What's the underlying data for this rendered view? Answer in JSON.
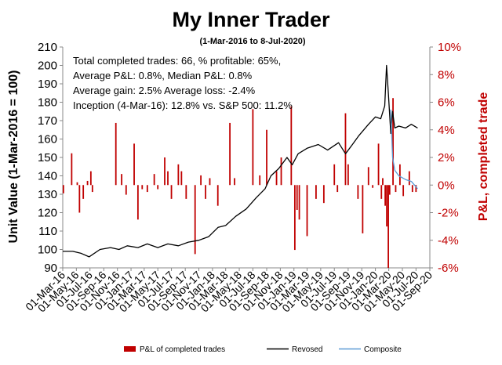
{
  "chart_data": {
    "type": "bar+line",
    "title": "My Inner Trader",
    "subtitle": "(1-Mar-2016 to 8-Jul-2020)",
    "ylabel_left": "Unit Value (1-Mar-2016 = 100)",
    "ylabel_right": "P&L, completed trade",
    "ylim_left": [
      90,
      210
    ],
    "yticks_left": [
      "90",
      "100",
      "110",
      "120",
      "130",
      "140",
      "150",
      "160",
      "170",
      "180",
      "190",
      "200",
      "210"
    ],
    "ylim_right": [
      -6,
      10
    ],
    "yticks_right": [
      "-6%",
      "-4%",
      "-2%",
      "0%",
      "2%",
      "4%",
      "6%",
      "8%",
      "10%"
    ],
    "xlim": [
      "2016-03-01",
      "2020-09-01"
    ],
    "xticks": [
      "01-Mar-16",
      "01-May-16",
      "01-Jul-16",
      "01-Sep-16",
      "01-Nov-16",
      "01-Jan-17",
      "01-Mar-17",
      "01-May-17",
      "01-Jul-17",
      "01-Sep-17",
      "01-Nov-17",
      "01-Jan-18",
      "01-Mar-18",
      "01-May-18",
      "01-Jul-18",
      "01-Sep-18",
      "01-Nov-18",
      "01-Jan-19",
      "01-Mar-19",
      "01-May-19",
      "01-Jul-19",
      "01-Sep-19",
      "01-Nov-19",
      "01-Jan-20",
      "01-Mar-20",
      "01-May-20",
      "01-Jul-20",
      "01-Sep-20"
    ],
    "annotations": [
      "Total completed trades: 66, % profitable: 65%,",
      "Average P&L: 0.8%, Median P&L: 0.8%",
      "Average gain: 2.5% Average loss: -2.4%",
      "Inception (4-Mar-16): 12.8% vs. S&P 500: 11.2%"
    ],
    "legend": [
      "P&L of completed trades",
      "Revosed",
      "Composite"
    ],
    "legend_position": "bottom",
    "colors": {
      "bars": "#c00000",
      "revosed": "#000000",
      "composite": "#5b9bd5"
    },
    "series": [
      {
        "name": "Revosed",
        "axis": "left",
        "points": [
          [
            "2016-03-01",
            99
          ],
          [
            "2016-04-15",
            99
          ],
          [
            "2016-05-20",
            98
          ],
          [
            "2016-06-27",
            96
          ],
          [
            "2016-08-15",
            100
          ],
          [
            "2016-10-01",
            101
          ],
          [
            "2016-11-08",
            100
          ],
          [
            "2016-12-15",
            102
          ],
          [
            "2017-02-01",
            101
          ],
          [
            "2017-03-15",
            103
          ],
          [
            "2017-05-01",
            101
          ],
          [
            "2017-06-15",
            103
          ],
          [
            "2017-08-01",
            102
          ],
          [
            "2017-09-15",
            104
          ],
          [
            "2017-11-01",
            105
          ],
          [
            "2017-12-15",
            107
          ],
          [
            "2018-01-26",
            112
          ],
          [
            "2018-03-01",
            113
          ],
          [
            "2018-04-15",
            118
          ],
          [
            "2018-06-01",
            122
          ],
          [
            "2018-07-15",
            128
          ],
          [
            "2018-08-25",
            133
          ],
          [
            "2018-09-20",
            140
          ],
          [
            "2018-10-25",
            144
          ],
          [
            "2018-12-01",
            150
          ],
          [
            "2018-12-24",
            146
          ],
          [
            "2019-01-20",
            152
          ],
          [
            "2019-03-01",
            155
          ],
          [
            "2019-04-20",
            157
          ],
          [
            "2019-06-01",
            154
          ],
          [
            "2019-07-20",
            158
          ],
          [
            "2019-08-20",
            152
          ],
          [
            "2019-09-20",
            157
          ],
          [
            "2019-10-20",
            162
          ],
          [
            "2019-12-01",
            168
          ],
          [
            "2020-01-01",
            172
          ],
          [
            "2020-01-25",
            171
          ],
          [
            "2020-02-12",
            178
          ],
          [
            "2020-02-20",
            200
          ],
          [
            "2020-02-28",
            185
          ],
          [
            "2020-03-10",
            163
          ],
          [
            "2020-03-18",
            175
          ],
          [
            "2020-03-28",
            166
          ],
          [
            "2020-04-15",
            167
          ],
          [
            "2020-05-15",
            166
          ],
          [
            "2020-06-10",
            168
          ],
          [
            "2020-07-08",
            166
          ]
        ]
      },
      {
        "name": "Composite",
        "axis": "left",
        "points": [
          [
            "2020-03-10",
            176
          ],
          [
            "2020-03-18",
            150
          ],
          [
            "2020-03-28",
            143
          ],
          [
            "2020-04-15",
            140
          ],
          [
            "2020-05-15",
            138
          ],
          [
            "2020-06-10",
            137
          ],
          [
            "2020-07-08",
            133
          ]
        ]
      },
      {
        "name": "P&L of completed trades",
        "axis": "right",
        "type": "bar",
        "points": [
          [
            "2016-03-04",
            -0.6
          ],
          [
            "2016-04-10",
            2.3
          ],
          [
            "2016-05-05",
            0.2
          ],
          [
            "2016-05-15",
            -2.0
          ],
          [
            "2016-06-01",
            -1.0
          ],
          [
            "2016-06-20",
            0.3
          ],
          [
            "2016-07-05",
            1.0
          ],
          [
            "2016-07-12",
            -0.5
          ],
          [
            "2016-10-25",
            4.5
          ],
          [
            "2016-11-20",
            0.8
          ],
          [
            "2016-12-10",
            -0.7
          ],
          [
            "2017-01-15",
            3.0
          ],
          [
            "2017-02-01",
            -2.5
          ],
          [
            "2017-02-20",
            -0.3
          ],
          [
            "2017-03-15",
            -0.5
          ],
          [
            "2017-04-15",
            0.8
          ],
          [
            "2017-05-01",
            -0.3
          ],
          [
            "2017-06-01",
            2.0
          ],
          [
            "2017-06-15",
            1.0
          ],
          [
            "2017-07-01",
            -1.0
          ],
          [
            "2017-08-01",
            1.5
          ],
          [
            "2017-08-15",
            1.0
          ],
          [
            "2017-09-05",
            -1.0
          ],
          [
            "2017-10-15",
            -5.0
          ],
          [
            "2017-11-10",
            0.7
          ],
          [
            "2017-12-01",
            -1.0
          ],
          [
            "2017-12-20",
            0.5
          ],
          [
            "2018-01-25",
            -1.5
          ],
          [
            "2018-03-20",
            4.5
          ],
          [
            "2018-04-10",
            0.5
          ],
          [
            "2018-07-01",
            5.5
          ],
          [
            "2018-08-01",
            0.7
          ],
          [
            "2018-09-01",
            4.0
          ],
          [
            "2018-10-15",
            1.0
          ],
          [
            "2018-11-05",
            2.0
          ],
          [
            "2018-12-20",
            5.7
          ],
          [
            "2019-01-05",
            -4.7
          ],
          [
            "2019-01-15",
            -1.8
          ],
          [
            "2019-01-25",
            -2.5
          ],
          [
            "2019-03-01",
            -3.7
          ],
          [
            "2019-04-10",
            -1.0
          ],
          [
            "2019-05-15",
            -1.3
          ],
          [
            "2019-07-01",
            1.5
          ],
          [
            "2019-07-15",
            -0.5
          ],
          [
            "2019-08-20",
            5.2
          ],
          [
            "2019-09-01",
            1.5
          ],
          [
            "2019-10-15",
            -1.0
          ],
          [
            "2019-11-05",
            -3.5
          ],
          [
            "2019-12-01",
            1.3
          ],
          [
            "2019-12-20",
            -0.2
          ],
          [
            "2020-01-15",
            3.0
          ],
          [
            "2020-01-28",
            -1.0
          ],
          [
            "2020-02-03",
            0.5
          ],
          [
            "2020-02-14",
            -1.5
          ],
          [
            "2020-02-21",
            -3.0
          ],
          [
            "2020-02-28",
            -6.0
          ],
          [
            "2020-03-05",
            -0.7
          ],
          [
            "2020-03-20",
            6.3
          ],
          [
            "2020-04-01",
            -0.5
          ],
          [
            "2020-04-20",
            1.5
          ],
          [
            "2020-05-05",
            -0.8
          ],
          [
            "2020-06-01",
            1.0
          ],
          [
            "2020-06-15",
            -0.5
          ],
          [
            "2020-07-01",
            -0.5
          ]
        ]
      }
    ]
  }
}
